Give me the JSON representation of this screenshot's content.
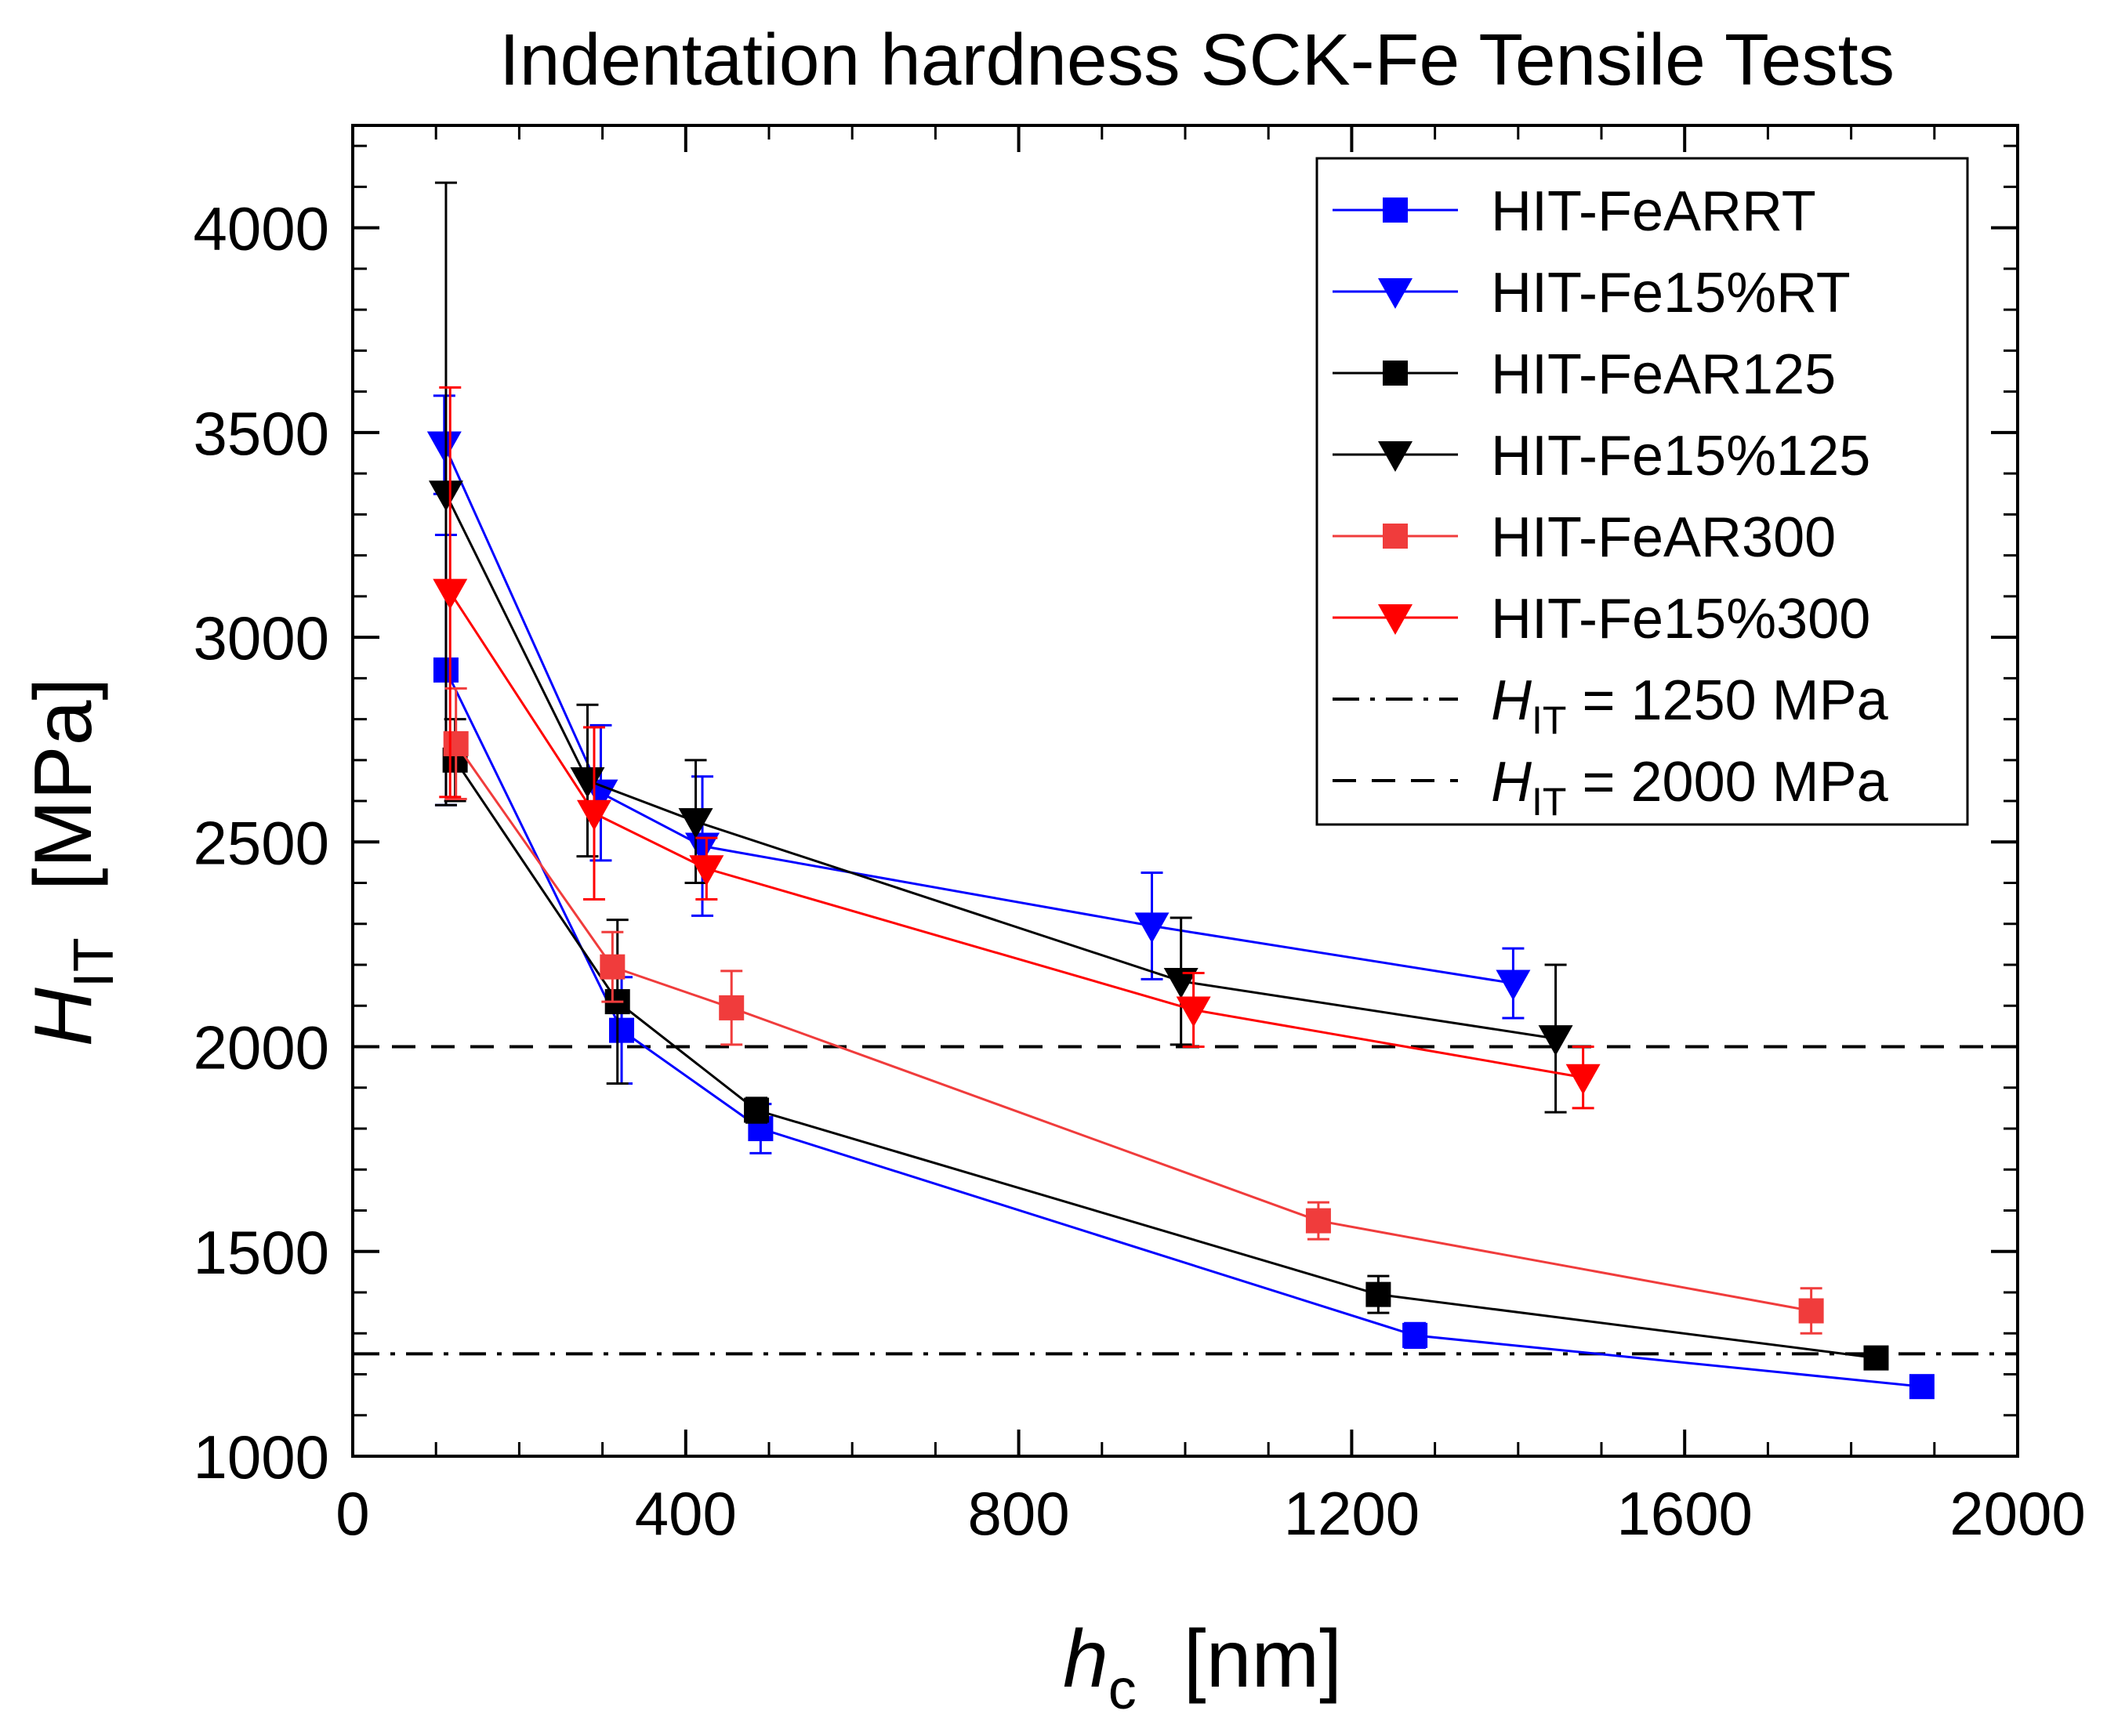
{
  "chart_data": {
    "type": "scatter",
    "title": "Indentation hardness SCK-Fe Tensile Tests",
    "xlabel": {
      "symbol": "h",
      "subscript": "c",
      "unit": "[nm]"
    },
    "ylabel": {
      "symbol": "H",
      "subscript": "IT",
      "unit": "[MPa]"
    },
    "xlim": [
      0,
      2000
    ],
    "ylim": [
      1000,
      4250
    ],
    "xticks": [
      0,
      400,
      800,
      1200,
      1600,
      2000
    ],
    "yticks": [
      1000,
      1500,
      2000,
      2500,
      3000,
      3500,
      4000
    ],
    "legend_position": "top-right",
    "series": [
      {
        "name": "HIT-FeARRT",
        "color": "#0000ff",
        "marker": "square",
        "x": [
          112,
          323,
          490,
          1276,
          1885
        ],
        "y": [
          2920,
          2040,
          1800,
          1295,
          1170
        ],
        "err": [
          330,
          130,
          60,
          30,
          20
        ]
      },
      {
        "name": "HIT-Fe15%RT",
        "color": "#0000ff",
        "marker": "triangle-down",
        "x": [
          110,
          298,
          420,
          960,
          1394
        ],
        "y": [
          3470,
          2620,
          2490,
          2295,
          2155
        ],
        "err": [
          120,
          165,
          170,
          130,
          85
        ]
      },
      {
        "name": "HIT-FeAR125",
        "color": "#000000",
        "marker": "square",
        "x": [
          123,
          318,
          485,
          1232,
          1830
        ],
        "y": [
          2700,
          2110,
          1845,
          1395,
          1240
        ],
        "err": [
          100,
          200,
          30,
          45,
          25
        ]
      },
      {
        "name": "HIT-Fe15%125",
        "color": "#000000",
        "marker": "triangle-down",
        "x": [
          112,
          282,
          412,
          995,
          1445
        ],
        "y": [
          3350,
          2650,
          2550,
          2160,
          2020
        ],
        "err": [
          760,
          185,
          150,
          155,
          180
        ]
      },
      {
        "name": "HIT-FeAR300",
        "color": "#f03c3c",
        "marker": "square",
        "x": [
          124,
          312,
          455,
          1160,
          1752
        ],
        "y": [
          2740,
          2195,
          2095,
          1575,
          1355
        ],
        "err": [
          135,
          85,
          90,
          45,
          55
        ]
      },
      {
        "name": "HIT-Fe15%300",
        "color": "#ff0000",
        "marker": "triangle-down",
        "x": [
          117,
          290,
          425,
          1010,
          1478
        ],
        "y": [
          3110,
          2570,
          2435,
          2090,
          1925
        ],
        "err": [
          500,
          210,
          75,
          90,
          75
        ]
      }
    ],
    "reference_lines": [
      {
        "symbol": "H",
        "subscript": "IT",
        "text": " = 1250 MPa",
        "y": 1250,
        "style": "dash-dot",
        "color": "#000000"
      },
      {
        "symbol": "H",
        "subscript": "IT",
        "text": " = 2000 MPa",
        "y": 2000,
        "style": "dash",
        "color": "#000000"
      }
    ]
  }
}
